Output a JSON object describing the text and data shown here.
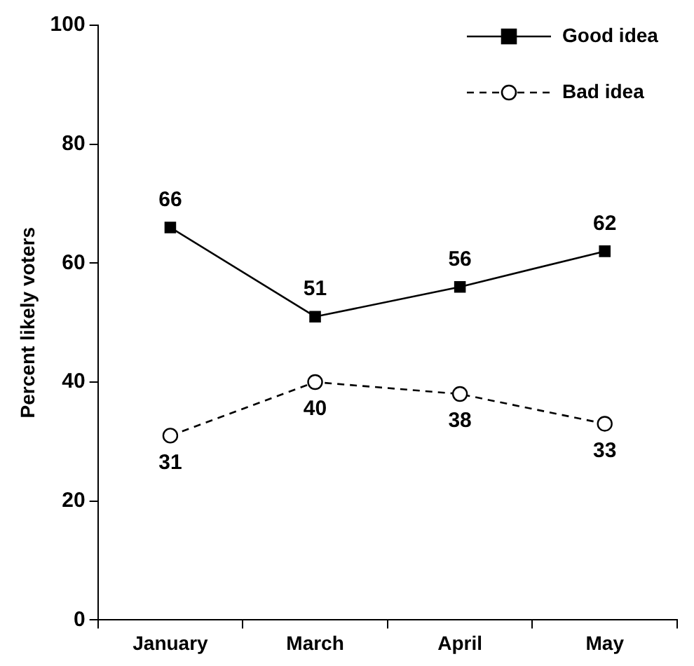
{
  "chart_data": {
    "type": "line",
    "ylabel": "Percent likely voters",
    "categories": [
      "January",
      "March",
      "April",
      "May"
    ],
    "series": [
      {
        "name": "Good idea",
        "color": "#000000",
        "values": [
          66,
          51,
          56,
          62
        ],
        "marker": "square",
        "line_style": "solid"
      },
      {
        "name": "Bad idea",
        "color": "#000000",
        "values": [
          31,
          40,
          38,
          33
        ],
        "marker": "circle",
        "line_style": "dashed"
      }
    ],
    "ylim": [
      0,
      100
    ],
    "yticks": [
      0,
      20,
      40,
      60,
      80,
      100
    ],
    "grid": false,
    "legend": "top right",
    "data_labels": true
  }
}
